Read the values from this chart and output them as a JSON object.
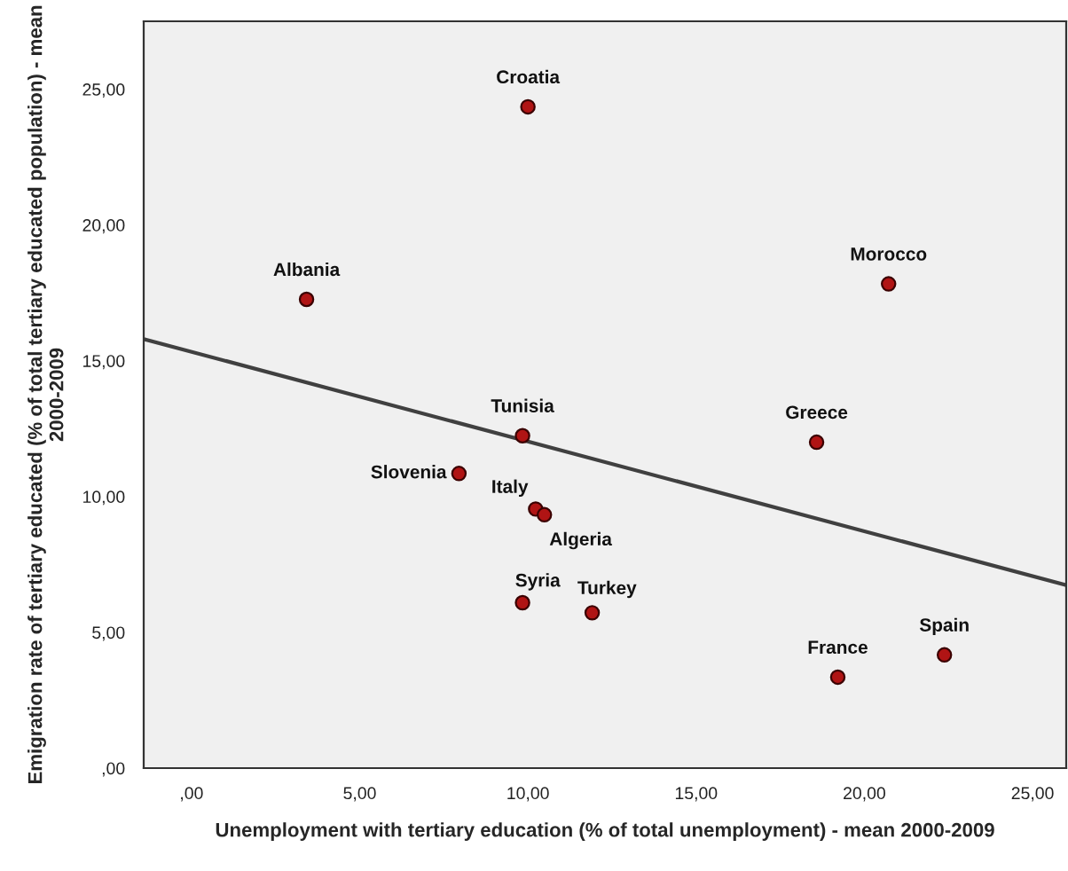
{
  "chart_data": {
    "type": "scatter",
    "xlabel": "Unemployment with tertiary education (% of total unemployment) - mean 2000-2009",
    "ylabel": "Emigration rate of tertiary educated (% of total tertiary educated population) - mean 2000-2009",
    "series": [
      {
        "color": "#b01414",
        "marker": "circle",
        "x": [
          10.0,
          3.42,
          9.84,
          7.95,
          10.23,
          10.49,
          9.84,
          11.91,
          20.72,
          18.58,
          19.21,
          22.38
        ],
        "values": [
          24.35,
          17.26,
          12.24,
          10.85,
          9.54,
          9.33,
          6.09,
          5.72,
          17.83,
          12.0,
          3.35,
          4.17
        ]
      },
      {
        "type": "line",
        "color": "#404040",
        "marker": "none",
        "x": [
          -1.42,
          26.0
        ],
        "values": [
          15.8,
          6.74
        ]
      }
    ],
    "annotations": [
      {
        "text": "Croatia",
        "x": 10.0,
        "y": 24.35
      },
      {
        "text": "Albania",
        "x": 3.42,
        "y": 17.26
      },
      {
        "text": "Tunisia",
        "x": 9.84,
        "y": 12.24
      },
      {
        "text": "Slovenia",
        "x": 7.95,
        "y": 10.85
      },
      {
        "text": "Italy",
        "x": 10.23,
        "y": 9.54
      },
      {
        "text": "Algeria",
        "x": 10.49,
        "y": 9.33
      },
      {
        "text": "Syria",
        "x": 9.84,
        "y": 6.09
      },
      {
        "text": "Turkey",
        "x": 11.91,
        "y": 5.72
      },
      {
        "text": "Morocco",
        "x": 20.72,
        "y": 17.83
      },
      {
        "text": "Greece",
        "x": 18.58,
        "y": 12.0
      },
      {
        "text": "France",
        "x": 19.21,
        "y": 3.35
      },
      {
        "text": "Spain",
        "x": 22.38,
        "y": 4.17
      }
    ],
    "xlim": [
      -1.42,
      26.0
    ],
    "ylim": [
      0,
      27.5
    ],
    "xticks": [
      {
        "value": 0,
        "label": ",00"
      },
      {
        "value": 5,
        "label": "5,00"
      },
      {
        "value": 10,
        "label": "10,00"
      },
      {
        "value": 15,
        "label": "15,00"
      },
      {
        "value": 20,
        "label": "20,00"
      },
      {
        "value": 25,
        "label": "25,00"
      }
    ],
    "yticks": [
      {
        "value": 0,
        "label": ",00"
      },
      {
        "value": 5,
        "label": "5,00"
      },
      {
        "value": 10,
        "label": "10,00"
      },
      {
        "value": 15,
        "label": "15,00"
      },
      {
        "value": 20,
        "label": "20,00"
      },
      {
        "value": 25,
        "label": "25,00"
      }
    ],
    "grid": false,
    "legend": false
  }
}
